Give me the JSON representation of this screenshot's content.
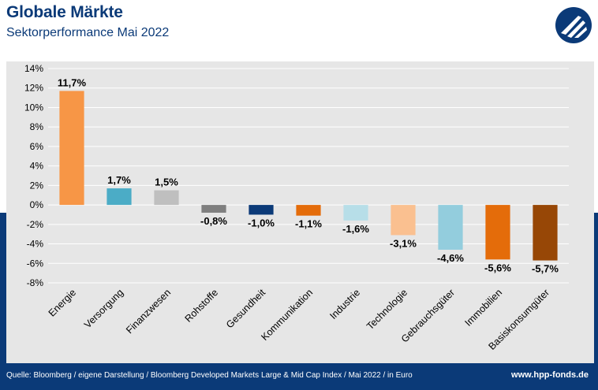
{
  "header": {
    "title": "Globale Märkte",
    "subtitle": "Sektorperformance Mai 2022"
  },
  "footer": {
    "source": "Quelle: Bloomberg / eigene Darstellung / Bloomberg Developed Markets Large & Mid Cap Index / Mai 2022 / in Euro",
    "url": "www.hpp-fonds.de"
  },
  "logo": {
    "icon": "hpp-logo-icon"
  },
  "colors": {
    "brand": "#0b3a78",
    "panel": "#e6e6e6"
  },
  "chart_data": {
    "type": "bar",
    "categories": [
      "Energie",
      "Versorgung",
      "Finanzwesen",
      "Rohstoffe",
      "Gesundheit",
      "Kommunikation",
      "Industrie",
      "Technologie",
      "Gebrauchsgüter",
      "Immobilien",
      "Basiskonsumgüter"
    ],
    "values": [
      11.7,
      1.7,
      1.5,
      -0.8,
      -1.0,
      -1.1,
      -1.6,
      -3.1,
      -4.6,
      -5.6,
      -5.7
    ],
    "data_labels": [
      "11,7%",
      "1,7%",
      "1,5%",
      "-0,8%",
      "-1,0%",
      "-1,1%",
      "-1,6%",
      "-3,1%",
      "-4,6%",
      "-5,6%",
      "-5,7%"
    ],
    "bar_colors": [
      "#f79646",
      "#4bacc6",
      "#bfbfbf",
      "#7f7f7f",
      "#0b3a78",
      "#e46c0a",
      "#b7dee8",
      "#fac090",
      "#93cddd",
      "#e46c0a",
      "#974706"
    ],
    "ylim": [
      -8,
      14
    ],
    "yticks": [
      14,
      12,
      10,
      8,
      6,
      4,
      2,
      0,
      -2,
      -4,
      -6,
      -8
    ],
    "ytick_labels": [
      "14%",
      "12%",
      "10%",
      "8%",
      "6%",
      "4%",
      "2%",
      "0%",
      "-2%",
      "-4%",
      "-6%",
      "-8%"
    ],
    "grid": true,
    "legend": "none"
  }
}
